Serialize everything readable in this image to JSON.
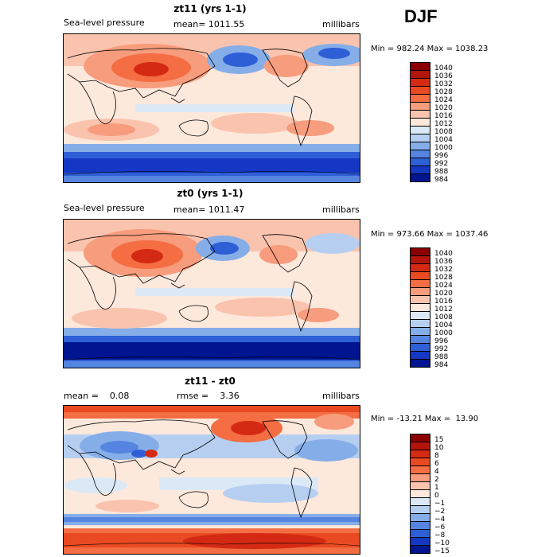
{
  "season": "DJF",
  "panels": [
    {
      "title": "zt11 (yrs 1-1)",
      "left_label": "Sea-level pressure",
      "center_label": "mean= 1011.55",
      "right_label": "millibars",
      "minmax": "Min = 982.24 Max = 1038.23",
      "colorbar": {
        "labels": [
          "1040",
          "1036",
          "1032",
          "1028",
          "1024",
          "1020",
          "1016",
          "1012",
          "1008",
          "1004",
          "1000",
          "996",
          "992",
          "988",
          "984"
        ],
        "colors": [
          "#8b0000",
          "#b3140c",
          "#d42a14",
          "#ea4a22",
          "#f46d43",
          "#f79c7c",
          "#fac3ae",
          "#fde8dc",
          "#dbe9f7",
          "#b6cff1",
          "#85aee9",
          "#5585e0",
          "#2f5fd6",
          "#1438c4",
          "#00158f"
        ]
      }
    },
    {
      "title": "zt0 (yrs 1-1)",
      "left_label": "Sea-level pressure",
      "center_label": "mean= 1011.47",
      "right_label": "millibars",
      "minmax": "Min = 973.66 Max = 1037.46",
      "colorbar": {
        "labels": [
          "1040",
          "1036",
          "1032",
          "1028",
          "1024",
          "1020",
          "1016",
          "1012",
          "1008",
          "1004",
          "1000",
          "996",
          "992",
          "988",
          "984"
        ],
        "colors": [
          "#8b0000",
          "#b3140c",
          "#d42a14",
          "#ea4a22",
          "#f46d43",
          "#f79c7c",
          "#fac3ae",
          "#fde8dc",
          "#dbe9f7",
          "#b6cff1",
          "#85aee9",
          "#5585e0",
          "#2f5fd6",
          "#1438c4",
          "#00158f"
        ]
      }
    },
    {
      "title": "zt11 - zt0",
      "left_label": "mean =    0.08",
      "center_label": "rmse =    3.36",
      "right_label": "millibars",
      "minmax": "Min = -13.21 Max =  13.90",
      "colorbar": {
        "labels": [
          "15",
          "10",
          "8",
          "6",
          "4",
          "2",
          "1",
          "0",
          "−1",
          "−2",
          "−4",
          "−6",
          "−8",
          "−10",
          "−15"
        ],
        "colors": [
          "#8b0000",
          "#b3140c",
          "#d42a14",
          "#ea4a22",
          "#f46d43",
          "#f79c7c",
          "#fac3ae",
          "#fde8dc",
          "#dbe9f7",
          "#b6cff1",
          "#85aee9",
          "#5585e0",
          "#2f5fd6",
          "#1438c4",
          "#00158f"
        ]
      }
    }
  ]
}
